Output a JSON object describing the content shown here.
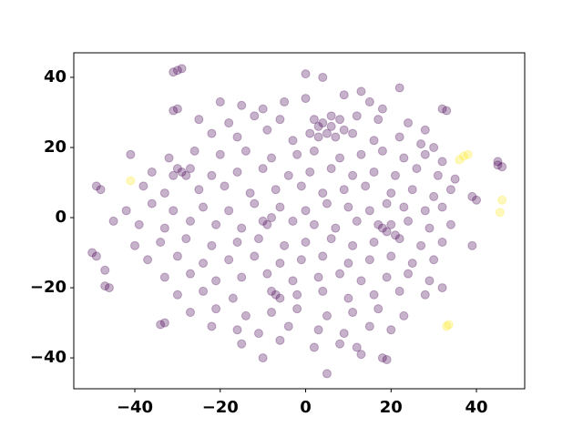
{
  "chart_data": {
    "type": "scatter",
    "xlim": [
      -54.3,
      51.3
    ],
    "ylim": [
      -48.8,
      47.0
    ],
    "xticks": [
      {
        "value": -40,
        "label": "−40"
      },
      {
        "value": -20,
        "label": "−20"
      },
      0,
      20,
      40
    ],
    "yticks": [
      {
        "value": -40,
        "label": "−40"
      },
      {
        "value": -20,
        "label": "−20"
      },
      0,
      20,
      40
    ],
    "alpha": 0.3,
    "series": [
      {
        "color": "#440154",
        "x": [
          -30,
          -29,
          -31,
          -31,
          -30,
          -49,
          -48,
          -50,
          -49,
          -47,
          -47,
          -46,
          -33,
          -34,
          45,
          46,
          45,
          39,
          40,
          39,
          -41,
          22,
          13,
          32,
          33,
          18,
          19,
          5,
          4,
          0,
          -10,
          13,
          -20,
          -15,
          -10,
          -5,
          0,
          9,
          15,
          18,
          -25,
          -18,
          -12,
          -6,
          2,
          4,
          6,
          8,
          12,
          17,
          24,
          28,
          -22,
          -16,
          -9,
          -3,
          1,
          3,
          5,
          7,
          9,
          3,
          6,
          11,
          16,
          22,
          27,
          30,
          -32,
          -26,
          -20,
          -14,
          -8,
          -2,
          2,
          8,
          13,
          18,
          23,
          28,
          32,
          -36,
          -30,
          -29,
          -28,
          -27,
          -31,
          -22,
          -16,
          -10,
          -4,
          1,
          6,
          11,
          16,
          21,
          26,
          31,
          35,
          -38,
          -33,
          -25,
          -19,
          -13,
          -7,
          -1,
          4,
          9,
          14,
          20,
          25,
          30,
          34,
          -42,
          -36,
          -31,
          -24,
          -18,
          -12,
          -6,
          0,
          5,
          10,
          15,
          19,
          23,
          28,
          32,
          -45,
          -39,
          -33,
          -27,
          -21,
          -15,
          -10,
          -9,
          -8,
          -3,
          2,
          7,
          12,
          17,
          18,
          19,
          20,
          21,
          24,
          29,
          34,
          -40,
          -34,
          -28,
          -22,
          -16,
          -11,
          -5,
          0,
          6,
          11,
          16,
          22,
          27,
          32,
          -37,
          -30,
          -24,
          -18,
          -12,
          -6,
          -1,
          4,
          10,
          15,
          20,
          25,
          30,
          -33,
          -27,
          -21,
          -15,
          -9,
          -3,
          3,
          8,
          13,
          19,
          24,
          29,
          -30,
          -24,
          -17,
          -8,
          -7,
          -6,
          -2,
          4,
          10,
          16,
          22,
          28,
          32,
          -27,
          -21,
          -14,
          -8,
          -2,
          5,
          11,
          17,
          23,
          -22,
          -16,
          -11,
          -4,
          3,
          9,
          15,
          20,
          -15,
          -6,
          2,
          12,
          8
        ],
        "values": [
          42,
          42.5,
          41.5,
          30.5,
          31,
          9,
          8,
          -10,
          -11,
          -15,
          -19.5,
          -20,
          -30,
          -30.5,
          15,
          14.5,
          16,
          6,
          5,
          -8,
          18,
          37,
          36,
          31,
          30.5,
          -40,
          -40.5,
          -44.5,
          40,
          41,
          -40,
          -39,
          33,
          32,
          31,
          33,
          34,
          35,
          33,
          31,
          28,
          27,
          29,
          28,
          28,
          27,
          29,
          28,
          29,
          28,
          27,
          25,
          24,
          23,
          25,
          22,
          24,
          23,
          24,
          23,
          25,
          26,
          26,
          24,
          22,
          23,
          21,
          20,
          17,
          19,
          18,
          19,
          17,
          18,
          19,
          17,
          18,
          19,
          17,
          18,
          16,
          13,
          14,
          13,
          12,
          14,
          12,
          12,
          13,
          14,
          12,
          13,
          14,
          12,
          13,
          12,
          14,
          12,
          11,
          9,
          7,
          8,
          9,
          7,
          8,
          9,
          7,
          8,
          9,
          7,
          8,
          6,
          8,
          2,
          4,
          2,
          3,
          2,
          4,
          3,
          2,
          4,
          3,
          2,
          4,
          3,
          2,
          3,
          -1,
          -2,
          -3,
          -1,
          -2,
          -3,
          -1,
          -2,
          0,
          -1,
          -2,
          -3,
          -1,
          -2,
          -3,
          -4,
          -2,
          -5,
          -1,
          -3,
          -2,
          -8,
          -7,
          -6,
          -8,
          -7,
          -6,
          -8,
          -7,
          -6,
          -8,
          -7,
          -6,
          -8,
          -7,
          -12,
          -11,
          -13,
          -12,
          -11,
          -13,
          -12,
          -11,
          -13,
          -12,
          -11,
          -13,
          -12,
          -17,
          -16,
          -18,
          -17,
          -16,
          -18,
          -17,
          -16,
          -18,
          -17,
          -16,
          -18,
          -22,
          -21,
          -23,
          -21,
          -22,
          -23,
          -22,
          -21,
          -23,
          -22,
          -21,
          -22,
          -20,
          -27,
          -26,
          -28,
          -27,
          -26,
          -28,
          -27,
          -26,
          -28,
          -31,
          -32,
          -33,
          -31,
          -32,
          -33,
          -31,
          -32,
          -36,
          -35,
          -37,
          -37,
          -36
        ]
      },
      {
        "color": "#fde725",
        "x": [
          -41,
          37,
          38,
          36,
          46,
          45.5,
          33.5,
          33
        ],
        "values": [
          10.5,
          17.5,
          18,
          16.5,
          5,
          1.5,
          -30.5,
          -31
        ]
      }
    ]
  }
}
